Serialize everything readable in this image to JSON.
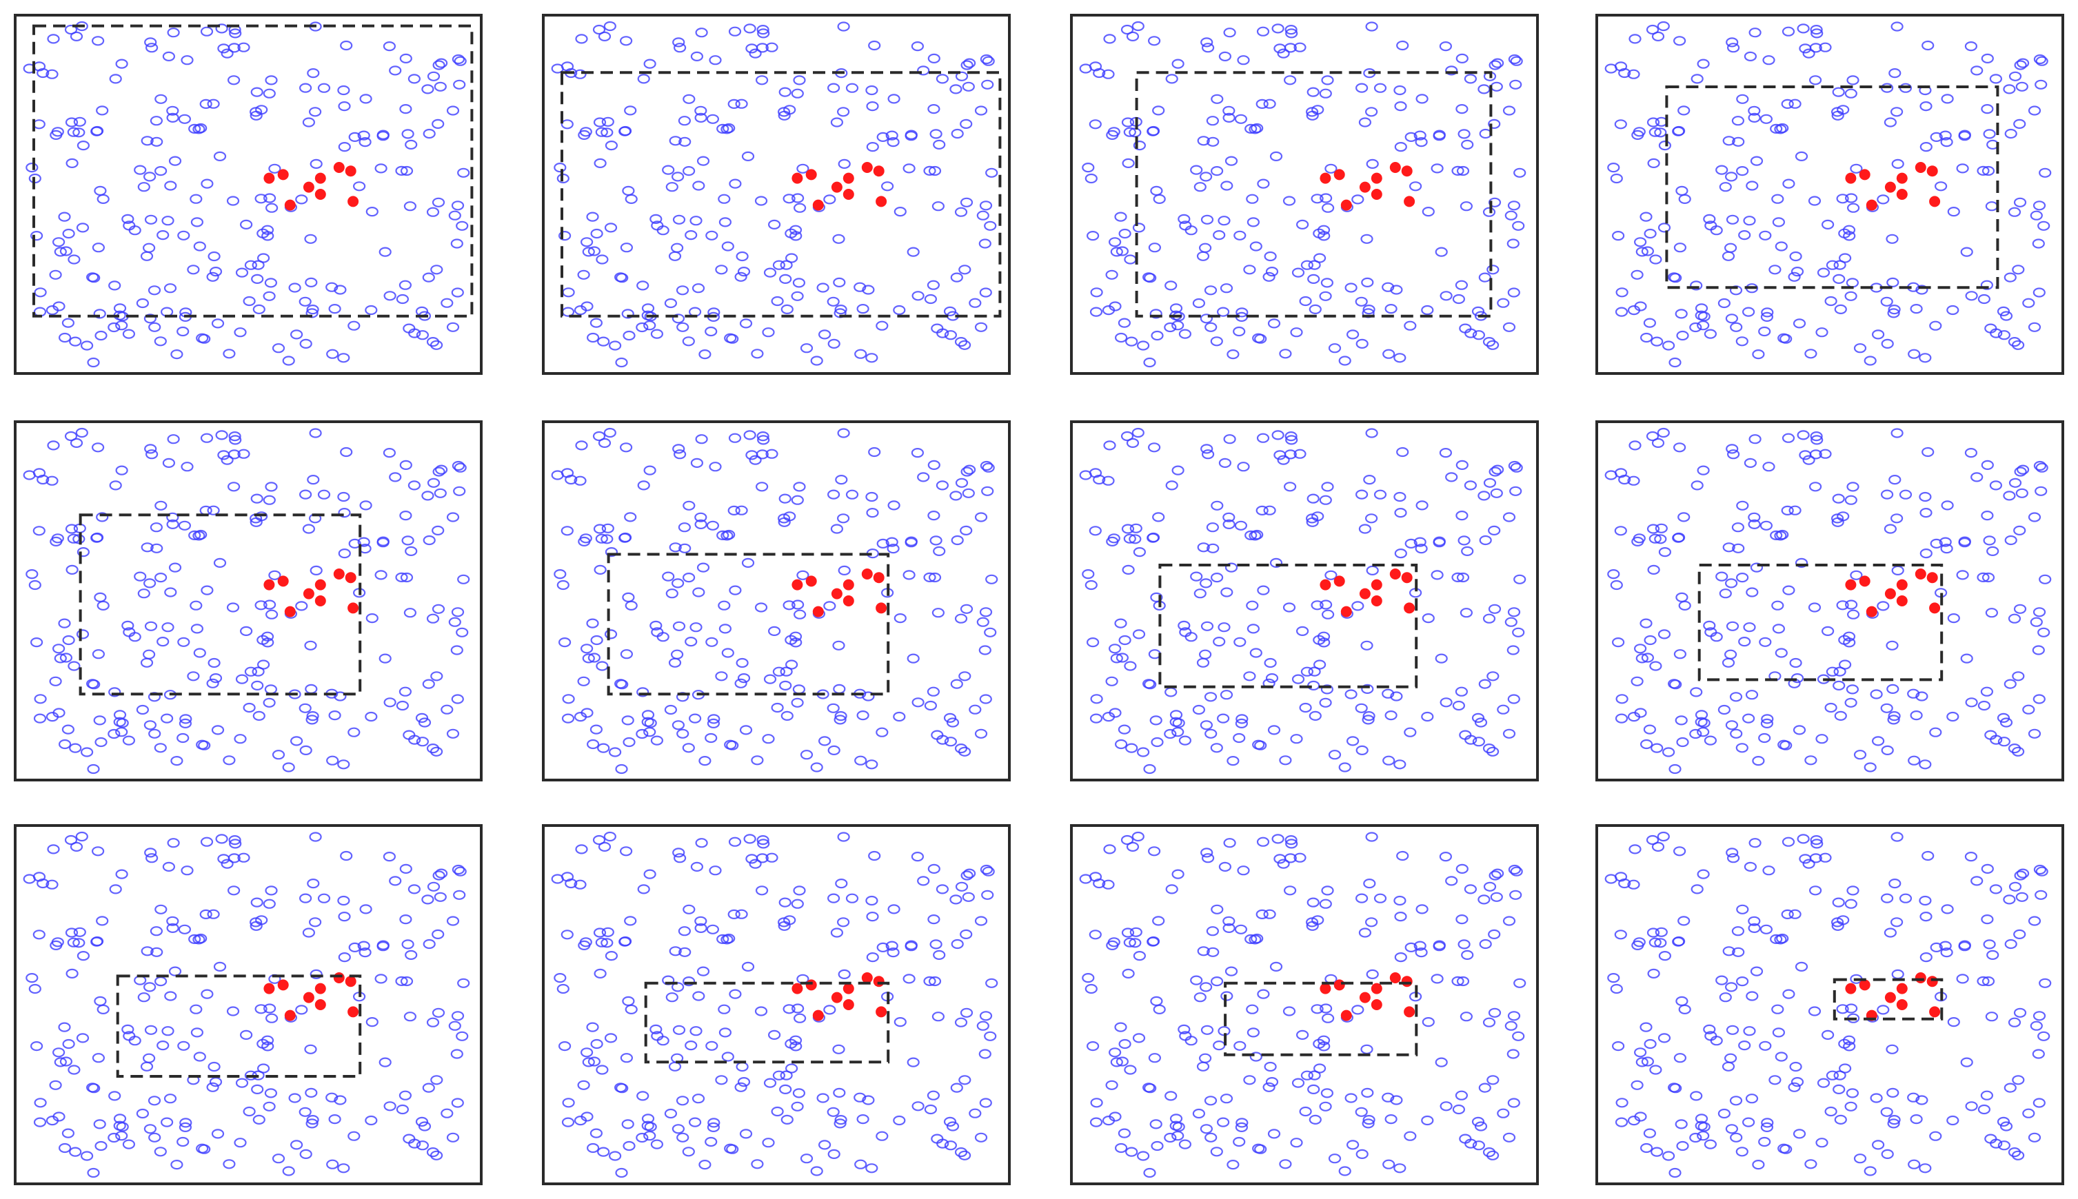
{
  "figure": {
    "panel_count": 12,
    "grid": {
      "rows": 3,
      "cols": 4
    },
    "colors": {
      "background_point": "#3b3bff",
      "target_point": "#ff1a1a",
      "frame": "#2a2a2a",
      "search_box": "#2a2a2a"
    },
    "point_style": {
      "background": "hollow-ellipse",
      "target": "filled-dot"
    },
    "search_box_style": "dashed",
    "background_point_count_approx": 230,
    "target_point_count": 9,
    "description_tags": [
      "iterative-window-shrinking",
      "outlier-cluster",
      "scatter-panels"
    ]
  },
  "chart_data": {
    "type": "scatter",
    "panels": [
      {
        "box_coverage_fraction": 0.93
      },
      {
        "box_coverage_fraction": 0.8
      },
      {
        "box_coverage_fraction": 0.6
      },
      {
        "box_coverage_fraction": 0.4
      },
      {
        "box_coverage_fraction": 0.3
      },
      {
        "box_coverage_fraction": 0.24
      },
      {
        "box_coverage_fraction": 0.2
      },
      {
        "box_coverage_fraction": 0.17
      },
      {
        "box_coverage_fraction": 0.12
      },
      {
        "box_coverage_fraction": 0.1
      },
      {
        "box_coverage_fraction": 0.07
      },
      {
        "box_coverage_fraction": 0.02
      }
    ]
  }
}
